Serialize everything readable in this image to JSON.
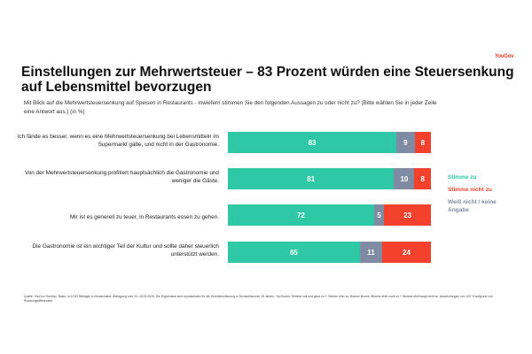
{
  "brand": {
    "logo_text": "YouGov"
  },
  "colors": {
    "agree": "#2ec8a6",
    "unsure": "#7f8ba3",
    "disagree": "#f4412e",
    "logo": "#e4402b"
  },
  "header": {
    "title": "Einstellungen zur Mehrwertsteuer – 83 Prozent würden eine Steuersenkung auf Lebensmittel bevorzugen",
    "subtitle": "Mit Blick auf die Mehrwertsteuersenkung auf Speisen in Restaurants - inwiefern stimmen Sie den folgenden Aussagen zu oder nicht zu? (Bitte wählen Sie in jeder Zeile eine Antwort aus.) (in %)"
  },
  "chart_data": {
    "type": "bar",
    "orientation": "horizontal",
    "stacked": true,
    "title": "Einstellungen zur Mehrwertsteuer – 83 Prozent würden eine Steuersenkung auf Lebensmittel bevorzugen",
    "xlabel": "",
    "ylabel": "",
    "unit": "%",
    "xlim": [
      0,
      100
    ],
    "grid": false,
    "legend_position": "right",
    "categories": [
      "Ich fände es besser, wenn es eine Mehrwertsteuersenkung bei Lebensmitteln im Supermarkt gäbe, und nicht in der Gastronomie.",
      "Von der Mehrwertsteuersenkung profitiert hauptsächlich die Gastronomie und weniger die Gäste.",
      "Mir ist es generell zu teuer, in Restaurants essen zu gehen.",
      "Die Gastronomie ist ein wichtiger Teil der Kultur und sollte daher steuerlich unterstützt werden."
    ],
    "series": [
      {
        "name": "Stimme zu",
        "color": "#2ec8a6",
        "values": [
          83,
          81,
          72,
          65
        ]
      },
      {
        "name": "Weiß nicht / keine Angabe",
        "color": "#7f8ba3",
        "values": [
          9,
          10,
          5,
          11
        ]
      },
      {
        "name": "Stimme nicht zu",
        "color": "#f4412e",
        "values": [
          8,
          8,
          23,
          24
        ]
      }
    ],
    "legend": [
      {
        "label": "Stimme zu",
        "color": "#2ec8a6"
      },
      {
        "label": "Stimme nicht zu",
        "color": "#f4412e"
      },
      {
        "label": "Weiß nicht / keine Angabe",
        "color": "#7f8ba3"
      }
    ]
  },
  "footer": {
    "source": "Quelle: YouGov Surveys. Basis: n=2.092 Befragte in Deutschland. Befragung vom 13.-16.03.2026. Die Ergebnisse sind repräsentativ für die Wohnbevölkerung in Deutschland ab 18 Jahren. Top Boxes: Stimme voll und ganz zu + Stimme eher zu; Bottom Boxes: Stimme eher nicht zu + Stimme überhaupt nicht zu. Abweichungen von 100 % aufgrund von Rundungsdifferenzen."
  }
}
